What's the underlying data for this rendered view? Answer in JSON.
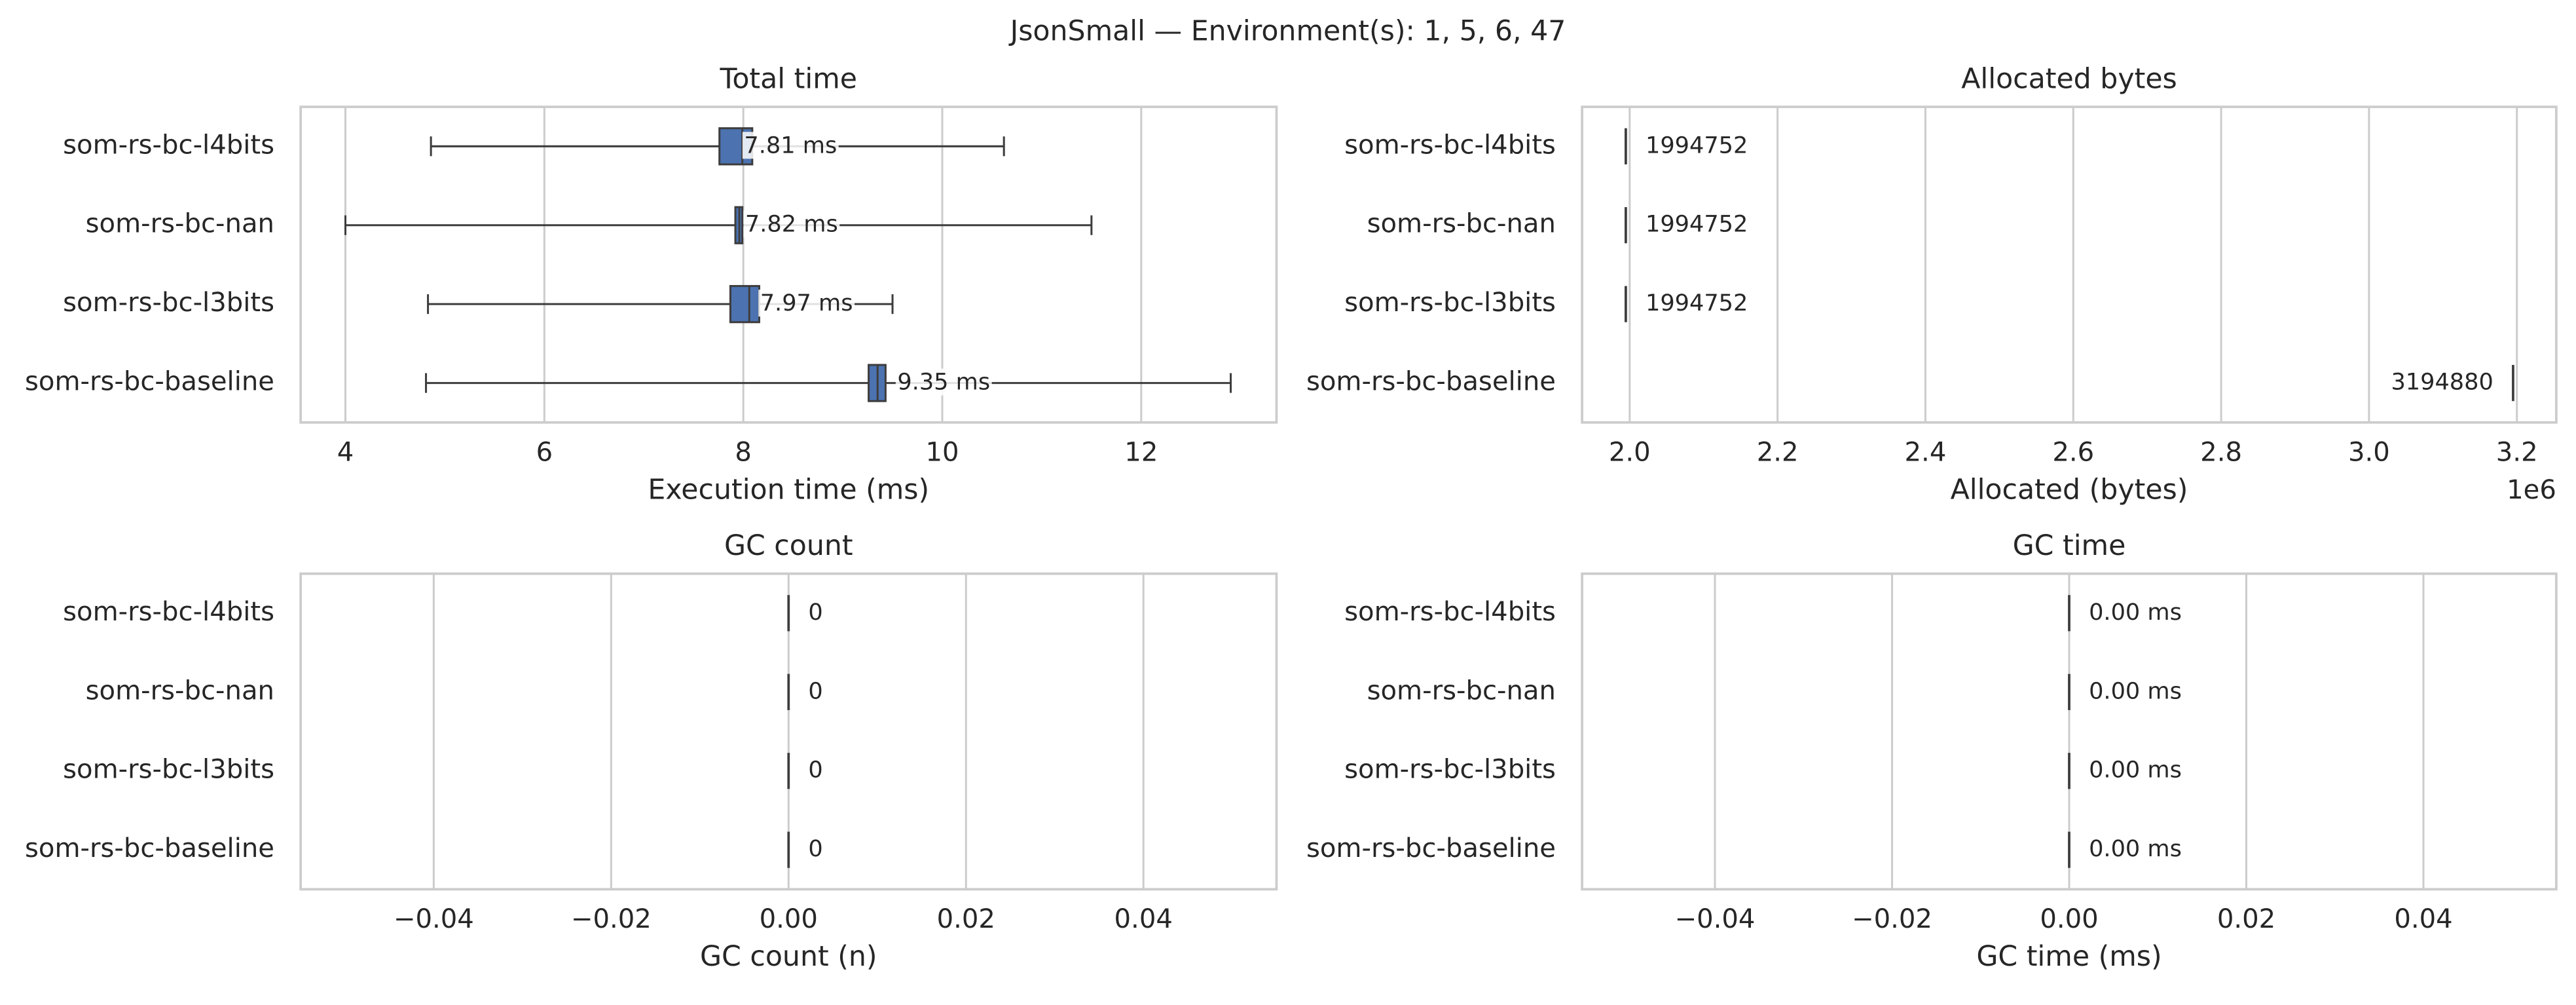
{
  "title": "JsonSmall — Environment(s): 1, 5, 6, 47",
  "chart_data": [
    {
      "type": "box",
      "title": "Total time",
      "xlabel": "Execution time (ms)",
      "categories": [
        "som-rs-bc-l4bits",
        "som-rs-bc-nan",
        "som-rs-bc-l3bits",
        "som-rs-bc-baseline"
      ],
      "color": "#4c72b0",
      "whislo": [
        4.86,
        4.0,
        4.83,
        4.81
      ],
      "q1": [
        7.76,
        7.92,
        7.87,
        9.26
      ],
      "med": [
        7.99,
        7.96,
        8.06,
        9.35
      ],
      "q3": [
        8.09,
        7.99,
        8.16,
        9.43
      ],
      "whishi": [
        10.62,
        11.5,
        9.5,
        12.9
      ],
      "means": [
        7.81,
        7.82,
        7.97,
        9.35
      ],
      "value_labels": [
        "7.81 ms",
        "7.82 ms",
        "7.97 ms",
        "9.35 ms"
      ],
      "xlim": [
        3.55,
        13.36
      ],
      "xticks": [
        4,
        6,
        8,
        10,
        12
      ],
      "grid": true
    },
    {
      "type": "tick",
      "title": "Allocated bytes",
      "xlabel": "Allocated (bytes)",
      "x_offset_label": "1e6",
      "categories": [
        "som-rs-bc-l4bits",
        "som-rs-bc-nan",
        "som-rs-bc-l3bits",
        "som-rs-bc-baseline"
      ],
      "values": [
        1994752,
        1994752,
        1994752,
        3194880
      ],
      "xlim": [
        1935600,
        3253300
      ],
      "xticks": [
        {
          "value": 2000000,
          "label": "2.0"
        },
        {
          "value": 2200000,
          "label": "2.2"
        },
        {
          "value": 2400000,
          "label": "2.4"
        },
        {
          "value": 2600000,
          "label": "2.6"
        },
        {
          "value": 2800000,
          "label": "2.8"
        },
        {
          "value": 3000000,
          "label": "3.0"
        },
        {
          "value": 3200000,
          "label": "3.2"
        }
      ],
      "grid": true
    },
    {
      "type": "tick",
      "title": "GC count",
      "xlabel": "GC count (n)",
      "categories": [
        "som-rs-bc-l4bits",
        "som-rs-bc-nan",
        "som-rs-bc-l3bits",
        "som-rs-bc-baseline"
      ],
      "values": [
        0,
        0,
        0,
        0
      ],
      "xlim": [
        -0.055,
        0.055
      ],
      "xticks": [
        {
          "value": -0.04,
          "label": "−0.04"
        },
        {
          "value": -0.02,
          "label": "−0.02"
        },
        {
          "value": 0,
          "label": "0.00"
        },
        {
          "value": 0.02,
          "label": "0.02"
        },
        {
          "value": 0.04,
          "label": "0.04"
        }
      ],
      "grid": true
    },
    {
      "type": "tick",
      "title": "GC time",
      "xlabel": "GC time (ms)",
      "categories": [
        "som-rs-bc-l4bits",
        "som-rs-bc-nan",
        "som-rs-bc-l3bits",
        "som-rs-bc-baseline"
      ],
      "values": [
        0,
        0,
        0,
        0
      ],
      "value_labels": [
        "0.00 ms",
        "0.00 ms",
        "0.00 ms",
        "0.00 ms"
      ],
      "xlim": [
        -0.055,
        0.055
      ],
      "xticks": [
        {
          "value": -0.04,
          "label": "−0.04"
        },
        {
          "value": -0.02,
          "label": "−0.02"
        },
        {
          "value": 0,
          "label": "0.00"
        },
        {
          "value": 0.02,
          "label": "0.02"
        },
        {
          "value": 0.04,
          "label": "0.04"
        }
      ],
      "grid": true
    }
  ]
}
